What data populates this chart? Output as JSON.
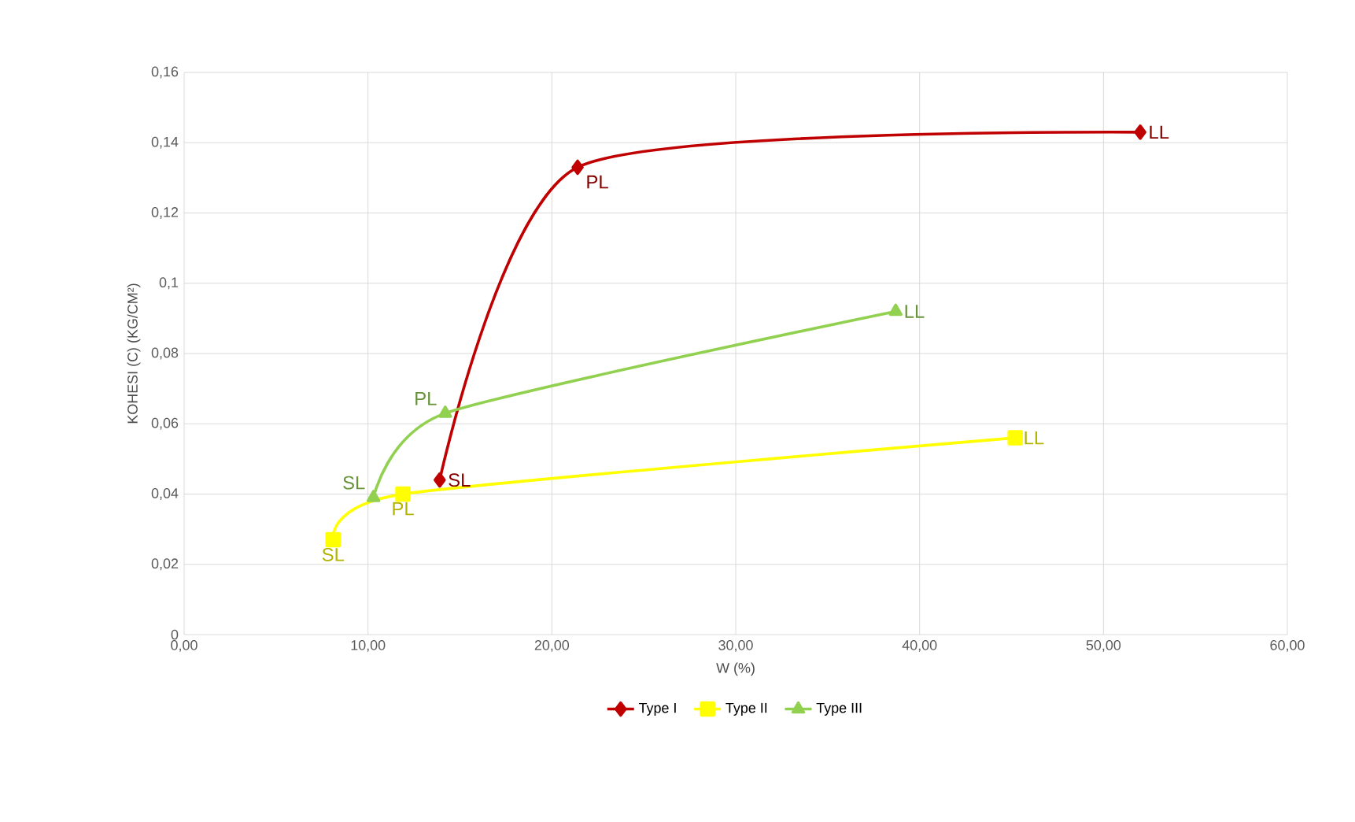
{
  "chart_data": {
    "type": "line",
    "xlabel": "W (%)",
    "ylabel": "KOHESI (C) (KG/CM²)",
    "xlim": [
      0,
      60
    ],
    "ylim": [
      0,
      0.16
    ],
    "xticks": [
      {
        "value": 0,
        "label": "0,00"
      },
      {
        "value": 10,
        "label": "10,00"
      },
      {
        "value": 20,
        "label": "20,00"
      },
      {
        "value": 30,
        "label": "30,00"
      },
      {
        "value": 40,
        "label": "40,00"
      },
      {
        "value": 50,
        "label": "50,00"
      },
      {
        "value": 60,
        "label": "60,00"
      }
    ],
    "yticks": [
      0,
      {
        "value": 0.02,
        "label": "0,02"
      },
      {
        "value": 0.04,
        "label": "0,04"
      },
      {
        "value": 0.06,
        "label": "0,06"
      },
      {
        "value": 0.08,
        "label": "0,08"
      },
      {
        "value": 0.1,
        "label": "0,1"
      },
      {
        "value": 0.12,
        "label": "0,12"
      },
      {
        "value": 0.14,
        "label": "0,14"
      },
      {
        "value": 0.16,
        "label": "0,16"
      }
    ],
    "grid": true,
    "legend": "bottom",
    "series": [
      {
        "name": "Type I",
        "color": "#c00000",
        "marker": "diamond",
        "x": [
          13.9,
          21.4,
          52.0
        ],
        "values": [
          0.044,
          0.133,
          0.143
        ]
      },
      {
        "name": "Type II",
        "color": "#ffff00",
        "marker": "square",
        "x": [
          8.1,
          11.9,
          45.2
        ],
        "values": [
          0.027,
          0.04,
          0.056
        ]
      },
      {
        "name": "Type III",
        "color": "#92d050",
        "marker": "triangle",
        "x": [
          10.3,
          14.2,
          38.7
        ],
        "values": [
          0.039,
          0.063,
          0.092
        ]
      }
    ],
    "annotations": [
      {
        "text": "SL",
        "x": 13.9,
        "y": 0.044
      },
      {
        "text": "PL",
        "x": 21.4,
        "y": 0.133
      },
      {
        "text": "LL",
        "x": 52.0,
        "y": 0.143
      },
      {
        "text": "SL",
        "x": 8.1,
        "y": 0.027
      },
      {
        "text": "PL",
        "x": 11.9,
        "y": 0.04
      },
      {
        "text": "LL",
        "x": 45.2,
        "y": 0.056
      },
      {
        "text": "SL",
        "x": 10.3,
        "y": 0.039
      },
      {
        "text": "PL",
        "x": 14.2,
        "y": 0.063
      },
      {
        "text": "LL",
        "x": 38.7,
        "y": 0.092
      }
    ]
  }
}
